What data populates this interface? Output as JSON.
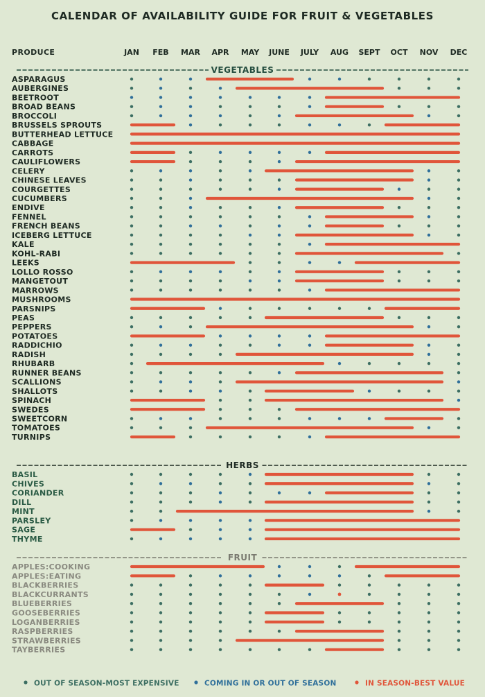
{
  "title": "CALENDAR OF AVAILABILITY GUIDE FOR FRUIT & VEGETABLES",
  "colors": {
    "background": "#dfe8d3",
    "out_of_season": "#3c6e62",
    "coming_in": "#2f6f9a",
    "in_season": "#e0553a",
    "veg_header": "#254d3f",
    "herb_label": "#2a5a44",
    "fruit_label": "#8a8a80",
    "fruit_header": "#7a7a70",
    "text": "#1e2a23"
  },
  "chart_data": {
    "type": "table",
    "title": "CALENDAR OF AVAILABILITY GUIDE FOR FRUIT & VEGETABLES",
    "column_header": "PRODUCE",
    "months": [
      "JAN",
      "FEB",
      "MAR",
      "APR",
      "MAY",
      "JUNE",
      "JULY",
      "AUG",
      "SEPT",
      "OCT",
      "NOV",
      "DEC"
    ],
    "legend": [
      {
        "key": "o",
        "label": "OUT OF SEASON-MOST EXPENSIVE"
      },
      {
        "key": "c",
        "label": "COMING IN OR OUT OF SEASON"
      },
      {
        "key": "i",
        "label": "IN SEASON-BEST VALUE"
      }
    ],
    "sections": [
      {
        "name": "VEGETABLES",
        "items": [
          {
            "name": "ASPARAGUS",
            "status": "occiiiccoooo"
          },
          {
            "name": "AUBERGINES",
            "status": "ocociiiiiooo"
          },
          {
            "name": "BEETROOT",
            "status": "ccccccciiiii"
          },
          {
            "name": "BROAD BEANS",
            "status": "occooociiooo"
          },
          {
            "name": "BROCCOLI",
            "status": "occcociiiico"
          },
          {
            "name": "BRUSSELS SPROUTS",
            "status": "iicoooccoiii"
          },
          {
            "name": "BUTTERHEAD LETTUCE",
            "status": "iiiiiiiiiiii"
          },
          {
            "name": "CABBAGE",
            "status": "iiiiiiiiiiii"
          },
          {
            "name": "CARROTS",
            "status": "iiocccciiiii"
          },
          {
            "name": "CAULIFLOWERS",
            "status": "iiooociiiiii"
          },
          {
            "name": "CELERY",
            "status": "occociiiiico"
          },
          {
            "name": "CHINESE LEAVES",
            "status": "oocoooiiiico"
          },
          {
            "name": "COURGETTES",
            "status": "ooooociiicoo"
          },
          {
            "name": "CUCUMBERS",
            "status": "oociiiiiiico"
          },
          {
            "name": "ENDIVE",
            "status": "oocoociiiooo"
          },
          {
            "name": "FENNEL",
            "status": "oooooociiico"
          },
          {
            "name": "FRENCH BEANS",
            "status": "ooccocciiooo"
          },
          {
            "name": "ICEBERG LETTUCE",
            "status": "oooocciiiico"
          },
          {
            "name": "KALE",
            "status": "oooooociiiii"
          },
          {
            "name": "KOHL-RABI",
            "status": "ooooooiiiiio"
          },
          {
            "name": "LEEKS",
            "status": "iiiioocciiii"
          },
          {
            "name": "LOLLO ROSSO",
            "status": "occcociiiooo"
          },
          {
            "name": "MANGETOUT",
            "status": "oooocciiiooo"
          },
          {
            "name": "MARROWS",
            "status": "oooooociiiii"
          },
          {
            "name": "MUSHROOMS",
            "status": "iiiiiiiiiiii"
          },
          {
            "name": "PARSNIPS",
            "status": "iiicoooooiii"
          },
          {
            "name": "PEAS",
            "status": "oooooiiiiooo"
          },
          {
            "name": "PEPPERS",
            "status": "ocoiiiiiiico"
          },
          {
            "name": "POTATOES",
            "status": "iiicccciiiii"
          },
          {
            "name": "RADDICHIO",
            "status": "occoocciiico"
          },
          {
            "name": "RADISH",
            "status": "ooooiiiiiico"
          },
          {
            "name": "RHUBARB",
            "status": "oiiiiiicoooo"
          },
          {
            "name": "RUNNER BEANS",
            "status": "ooooociiiiio"
          },
          {
            "name": "SCALLIONS",
            "status": "occoiiiiiiic"
          },
          {
            "name": "SHALLOTS",
            "status": "ooccoiiicooo"
          },
          {
            "name": "SPINACH",
            "status": "iiiooiiiiiic"
          },
          {
            "name": "SWEDES",
            "status": "iiioooiiiiii"
          },
          {
            "name": "SWEETCORN",
            "status": "occoooccciio"
          },
          {
            "name": "TOMATOES",
            "status": "oooiiiiiiico"
          },
          {
            "name": "TURNIPS",
            "status": "iioooociiiii"
          }
        ]
      },
      {
        "name": "HERBS",
        "items": [
          {
            "name": "BASIL",
            "status": "oooociiiiioo"
          },
          {
            "name": "CHIVES",
            "status": "occooiiiiico"
          },
          {
            "name": "CORIANDER",
            "status": "ooococciiioo"
          },
          {
            "name": "DILL",
            "status": "ooocoiiiiioo"
          },
          {
            "name": "MINT",
            "status": "ooiiiiiiiico"
          },
          {
            "name": "PARSLEY",
            "status": "occcciiiiiii"
          },
          {
            "name": "SAGE",
            "status": "iiocciiiiiii"
          },
          {
            "name": "THYME",
            "status": "occcciiiiiii"
          }
        ]
      },
      {
        "name": "FRUIT",
        "items": [
          {
            "name": "APPLES:COOKING",
            "status": "iiiiiccoiiii"
          },
          {
            "name": "APPLES:EATING",
            "status": "iiocccccoiii"
          },
          {
            "name": "BLACKBERRIES",
            "status": "oooooiiooooo"
          },
          {
            "name": "BLACKCURRANTS",
            "status": "oooooocioooo"
          },
          {
            "name": "BLUEBERRIES",
            "status": "ooooooiiiooo"
          },
          {
            "name": "GOOSEBERRIES",
            "status": "oooooiiooooo"
          },
          {
            "name": "LOGANBERRIES",
            "status": "oooooiiooooo"
          },
          {
            "name": "RASPBERRIES",
            "status": "ooooooiiiooo"
          },
          {
            "name": "STRAWBERRIES",
            "status": "ooooiiiiiooo"
          },
          {
            "name": "TAYBERRIES",
            "status": "oooooooiiooo"
          }
        ]
      }
    ]
  }
}
